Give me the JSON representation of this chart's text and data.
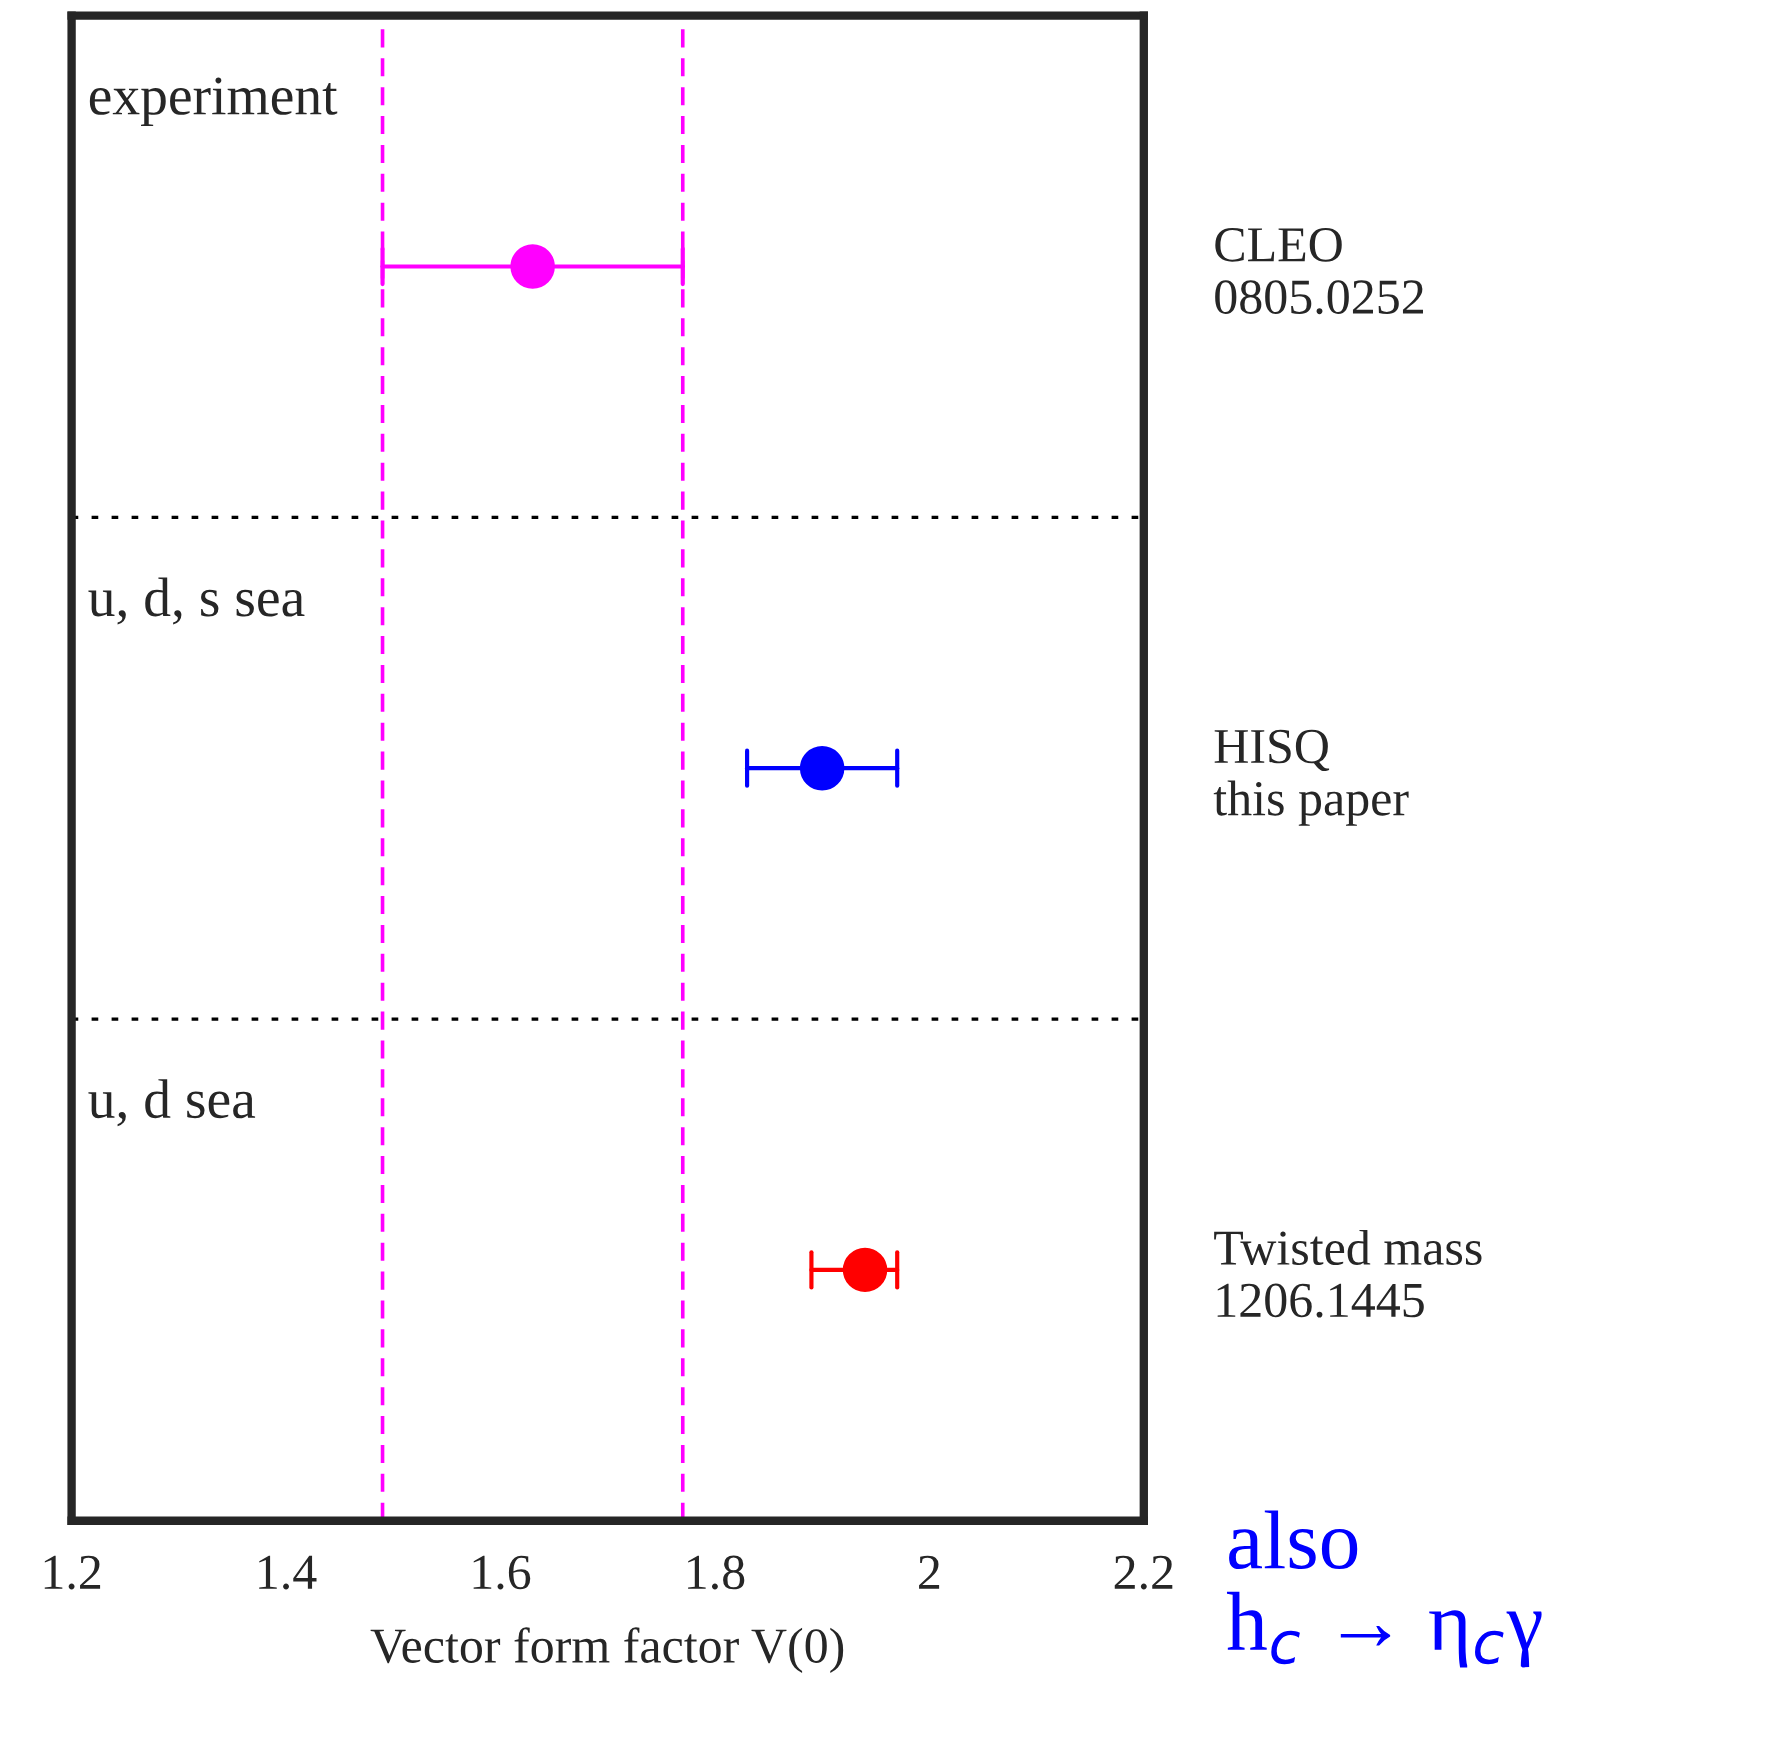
{
  "chart_data": {
    "type": "scatter",
    "orientation": "horizontal",
    "categories": [
      "CLEO\n0805.0252",
      "HISQ\nthis paper",
      "Twisted mass\n1206.1445"
    ],
    "values": [
      1.63,
      1.9,
      1.94
    ],
    "errors": [
      [
        1.49,
        1.77
      ],
      [
        1.83,
        1.97
      ],
      [
        1.89,
        1.97
      ]
    ],
    "colors": [
      "#ff00ff",
      "#0000ff",
      "#ff0000"
    ],
    "marker": "circle",
    "xlabel": "Vector form factor V(0)",
    "xlim": [
      1.2,
      2.2
    ],
    "xticks": [
      1.2,
      1.4,
      1.6,
      1.8,
      2,
      2.2
    ],
    "ref_lines": [
      {
        "axis": "x",
        "value": 1.49,
        "color": "#ff00ff",
        "line_style": "dashed"
      },
      {
        "axis": "x",
        "value": 1.77,
        "color": "#ff00ff",
        "line_style": "dashed"
      }
    ],
    "annotations": [
      "experiment",
      "u, d, s sea",
      "u, d sea",
      "also\nh$_{c}$ → η$_{c}$γ"
    ],
    "grid": false
  }
}
